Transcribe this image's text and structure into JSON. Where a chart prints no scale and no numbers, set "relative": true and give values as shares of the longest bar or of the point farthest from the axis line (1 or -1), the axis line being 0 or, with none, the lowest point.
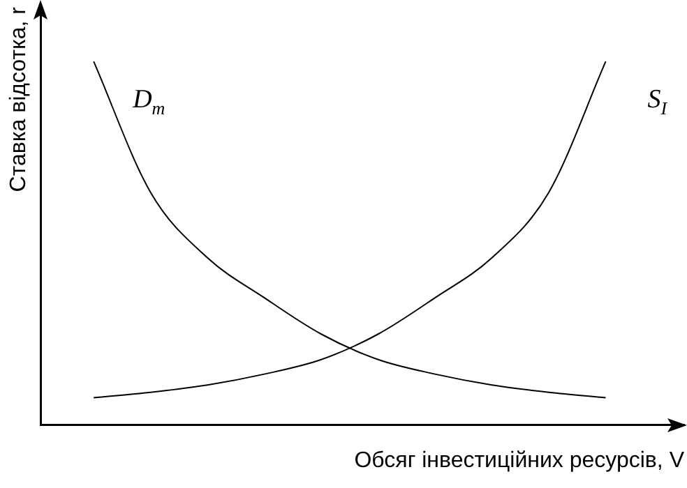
{
  "chart_data": {
    "type": "line",
    "relative": true,
    "xlabel": "Обсяг інвестиційних ресурсів, V",
    "ylabel": "Ставка відсотка, r",
    "categories": [
      null,
      null,
      null,
      null,
      null,
      null,
      null,
      null,
      null,
      null
    ],
    "grid": false,
    "legend": false,
    "marker": "none",
    "line_style": "solid",
    "series": [
      {
        "name": "D$_{m}$",
        "color": "#000000",
        "values": [
          1.0,
          0.64,
          0.46,
          0.35,
          0.25,
          0.18,
          0.14,
          0.11,
          0.09,
          0.075
        ]
      },
      {
        "name": "S$_{I}$",
        "color": "#000000",
        "values": [
          0.075,
          0.09,
          0.11,
          0.14,
          0.18,
          0.25,
          0.35,
          0.46,
          0.64,
          1.0
        ]
      }
    ]
  }
}
